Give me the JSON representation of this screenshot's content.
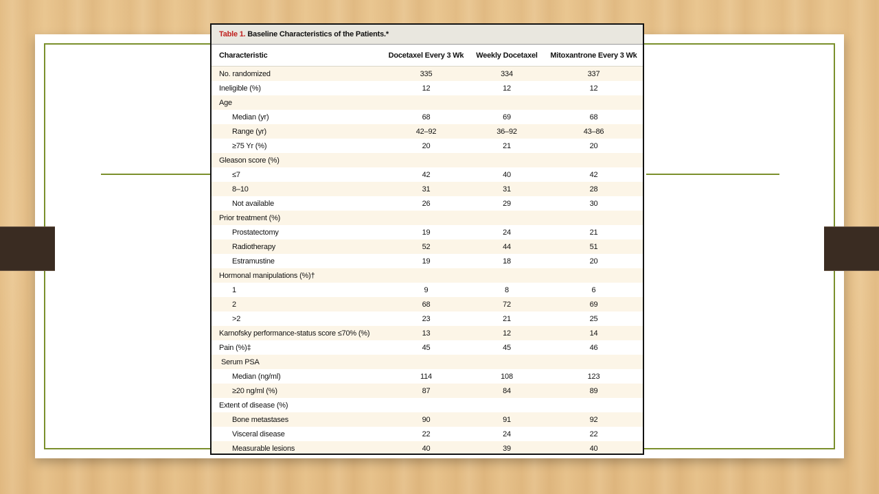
{
  "table": {
    "title_label": "Table 1.",
    "title_text": " Baseline Characteristics of the Patients.*",
    "headers": [
      "Characteristic",
      "Docetaxel Every 3 Wk",
      "Weekly Docetaxel",
      "Mitoxantrone Every 3 Wk"
    ],
    "rows": [
      {
        "label": "No. randomized",
        "indent": 0,
        "values": [
          "335",
          "334",
          "337"
        ]
      },
      {
        "label": "Ineligible (%)",
        "indent": 0,
        "values": [
          "12",
          "12",
          "12"
        ]
      },
      {
        "label": "Age",
        "indent": 0,
        "values": [
          "",
          "",
          ""
        ]
      },
      {
        "label": "Median (yr)",
        "indent": 1,
        "values": [
          "68",
          "69",
          "68"
        ]
      },
      {
        "label": "Range (yr)",
        "indent": 1,
        "values": [
          "42–92",
          "36–92",
          "43–86"
        ]
      },
      {
        "label": "≥75 Yr (%)",
        "indent": 1,
        "values": [
          "20",
          "21",
          "20"
        ]
      },
      {
        "label": "Gleason score (%)",
        "indent": 0,
        "values": [
          "",
          "",
          ""
        ]
      },
      {
        "label": "≤7",
        "indent": 1,
        "values": [
          "42",
          "40",
          "42"
        ]
      },
      {
        "label": "8–10",
        "indent": 1,
        "values": [
          "31",
          "31",
          "28"
        ]
      },
      {
        "label": "Not available",
        "indent": 1,
        "values": [
          "26",
          "29",
          "30"
        ]
      },
      {
        "label": "Prior treatment (%)",
        "indent": 0,
        "values": [
          "",
          "",
          ""
        ]
      },
      {
        "label": "Prostatectomy",
        "indent": 1,
        "values": [
          "19",
          "24",
          "21"
        ]
      },
      {
        "label": "Radiotherapy",
        "indent": 1,
        "values": [
          "52",
          "44",
          "51"
        ]
      },
      {
        "label": "Estramustine",
        "indent": 1,
        "values": [
          "19",
          "18",
          "20"
        ]
      },
      {
        "label": "Hormonal manipulations (%)†",
        "indent": 0,
        "values": [
          "",
          "",
          ""
        ]
      },
      {
        "label": "1",
        "indent": 1,
        "values": [
          "9",
          "8",
          "6"
        ]
      },
      {
        "label": "2",
        "indent": 1,
        "values": [
          "68",
          "72",
          "69"
        ]
      },
      {
        "label": ">2",
        "indent": 1,
        "values": [
          "23",
          "21",
          "25"
        ]
      },
      {
        "label": "Karnofsky performance-status score ≤70% (%)",
        "indent": 0,
        "values": [
          "13",
          "12",
          "14"
        ]
      },
      {
        "label": "Pain (%)‡",
        "indent": 0,
        "values": [
          "45",
          "45",
          "46"
        ]
      },
      {
        "label": "Serum PSA",
        "indent": 0.5,
        "values": [
          "",
          "",
          ""
        ]
      },
      {
        "label": "Median (ng/ml)",
        "indent": 1,
        "values": [
          "114",
          "108",
          "123"
        ]
      },
      {
        "label": "≥20 ng/ml (%)",
        "indent": 1,
        "values": [
          "87",
          "84",
          "89"
        ]
      },
      {
        "label": "Extent of disease (%)",
        "indent": 0,
        "values": [
          "",
          "",
          ""
        ]
      },
      {
        "label": "Bone metastases",
        "indent": 1,
        "values": [
          "90",
          "91",
          "92"
        ]
      },
      {
        "label": "Visceral disease",
        "indent": 1,
        "values": [
          "22",
          "24",
          "22"
        ]
      },
      {
        "label": "Measurable lesions",
        "indent": 1,
        "values": [
          "40",
          "39",
          "40"
        ]
      }
    ]
  },
  "colors": {
    "accent_green": "#7a8f2b",
    "title_red": "#c0211f",
    "row_stripe": "#fcf5e7",
    "side_tab": "#3a2c22"
  }
}
